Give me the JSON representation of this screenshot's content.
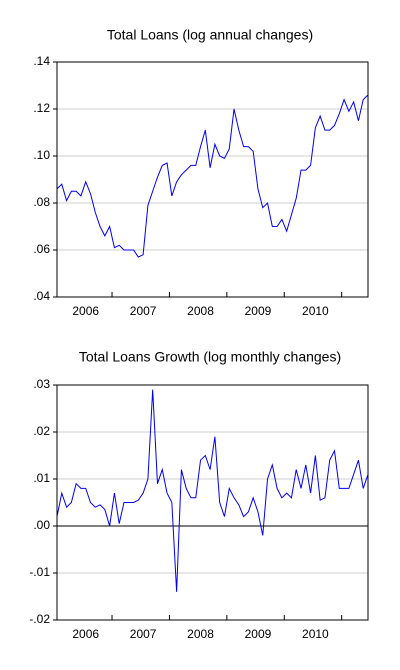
{
  "chart_data": [
    {
      "type": "line",
      "title": "Total Loans (log annual changes)",
      "categories": [
        null,
        null,
        null,
        null,
        null,
        null,
        "2006",
        null,
        null,
        null,
        null,
        null,
        null,
        null,
        null,
        null,
        null,
        null,
        "2007",
        null,
        null,
        null,
        null,
        null,
        null,
        null,
        null,
        null,
        null,
        null,
        "2008",
        null,
        null,
        null,
        null,
        null,
        null,
        null,
        null,
        null,
        null,
        null,
        "2009",
        null,
        null,
        null,
        null,
        null,
        null,
        null,
        null,
        null,
        null,
        null,
        "2010",
        null,
        null,
        null,
        null,
        null,
        null,
        null,
        null,
        null,
        null,
        null
      ],
      "series": [
        {
          "color": "#0000ee",
          "values": [
            0.086,
            0.088,
            0.081,
            0.085,
            0.085,
            0.083,
            0.089,
            0.084,
            0.076,
            0.07,
            0.066,
            0.07,
            0.061,
            0.062,
            0.06,
            0.06,
            0.06,
            0.057,
            0.058,
            0.079,
            0.085,
            0.091,
            0.096,
            0.097,
            0.083,
            0.089,
            0.092,
            0.094,
            0.096,
            0.096,
            0.104,
            0.111,
            0.095,
            0.105,
            0.1,
            0.099,
            0.103,
            0.12,
            0.111,
            0.104,
            0.104,
            0.102,
            0.086,
            0.078,
            0.08,
            0.07,
            0.07,
            0.073,
            0.068,
            0.075,
            0.082,
            0.094,
            0.094,
            0.096,
            0.112,
            0.117,
            0.111,
            0.111,
            0.113,
            0.118,
            0.124,
            0.119,
            0.123,
            0.115,
            0.124,
            0.126
          ]
        }
      ],
      "ylim": [
        0.04,
        0.14
      ],
      "yticks": [
        {
          "value": 0.04,
          "label": ".04"
        },
        {
          "value": 0.06,
          "label": ".06"
        },
        {
          "value": 0.08,
          "label": ".08"
        },
        {
          "value": 0.1,
          "label": ".10"
        },
        {
          "value": 0.12,
          "label": ".12"
        },
        {
          "value": 0.14,
          "label": ".14"
        }
      ],
      "grid": true
    },
    {
      "type": "line",
      "title": "Total Loans Growth (log monthly changes)",
      "categories": [
        null,
        null,
        null,
        null,
        null,
        null,
        "2006",
        null,
        null,
        null,
        null,
        null,
        null,
        null,
        null,
        null,
        null,
        null,
        "2007",
        null,
        null,
        null,
        null,
        null,
        null,
        null,
        null,
        null,
        null,
        null,
        "2008",
        null,
        null,
        null,
        null,
        null,
        null,
        null,
        null,
        null,
        null,
        null,
        "2009",
        null,
        null,
        null,
        null,
        null,
        null,
        null,
        null,
        null,
        null,
        null,
        "2010",
        null,
        null,
        null,
        null,
        null,
        null,
        null,
        null,
        null,
        null,
        null
      ],
      "series": [
        {
          "color": "#0000ee",
          "values": [
            0.002,
            0.007,
            0.004,
            0.005,
            0.009,
            0.008,
            0.008,
            0.005,
            0.004,
            0.0045,
            0.0035,
            0.0,
            0.007,
            0.0005,
            0.005,
            0.005,
            0.005,
            0.0055,
            0.007,
            0.01,
            0.029,
            0.009,
            0.012,
            0.007,
            0.005,
            -0.014,
            0.012,
            0.008,
            0.006,
            0.006,
            0.014,
            0.015,
            0.012,
            0.019,
            0.005,
            0.002,
            0.008,
            0.006,
            0.0045,
            0.002,
            0.003,
            0.006,
            0.003,
            -0.002,
            0.01,
            0.013,
            0.008,
            0.006,
            0.007,
            0.006,
            0.012,
            0.008,
            0.013,
            0.007,
            0.015,
            0.0055,
            0.006,
            0.014,
            0.016,
            0.008,
            0.008,
            0.008,
            0.011,
            0.014,
            0.008,
            0.011
          ]
        }
      ],
      "ylim": [
        -0.02,
        0.03
      ],
      "yticks": [
        {
          "value": -0.02,
          "label": "-.02"
        },
        {
          "value": -0.01,
          "label": "-.01"
        },
        {
          "value": 0,
          "label": ".00"
        },
        {
          "value": 0.01,
          "label": ".01"
        },
        {
          "value": 0.02,
          "label": ".02"
        },
        {
          "value": 0.03,
          "label": ".03"
        }
      ],
      "grid": true
    }
  ]
}
